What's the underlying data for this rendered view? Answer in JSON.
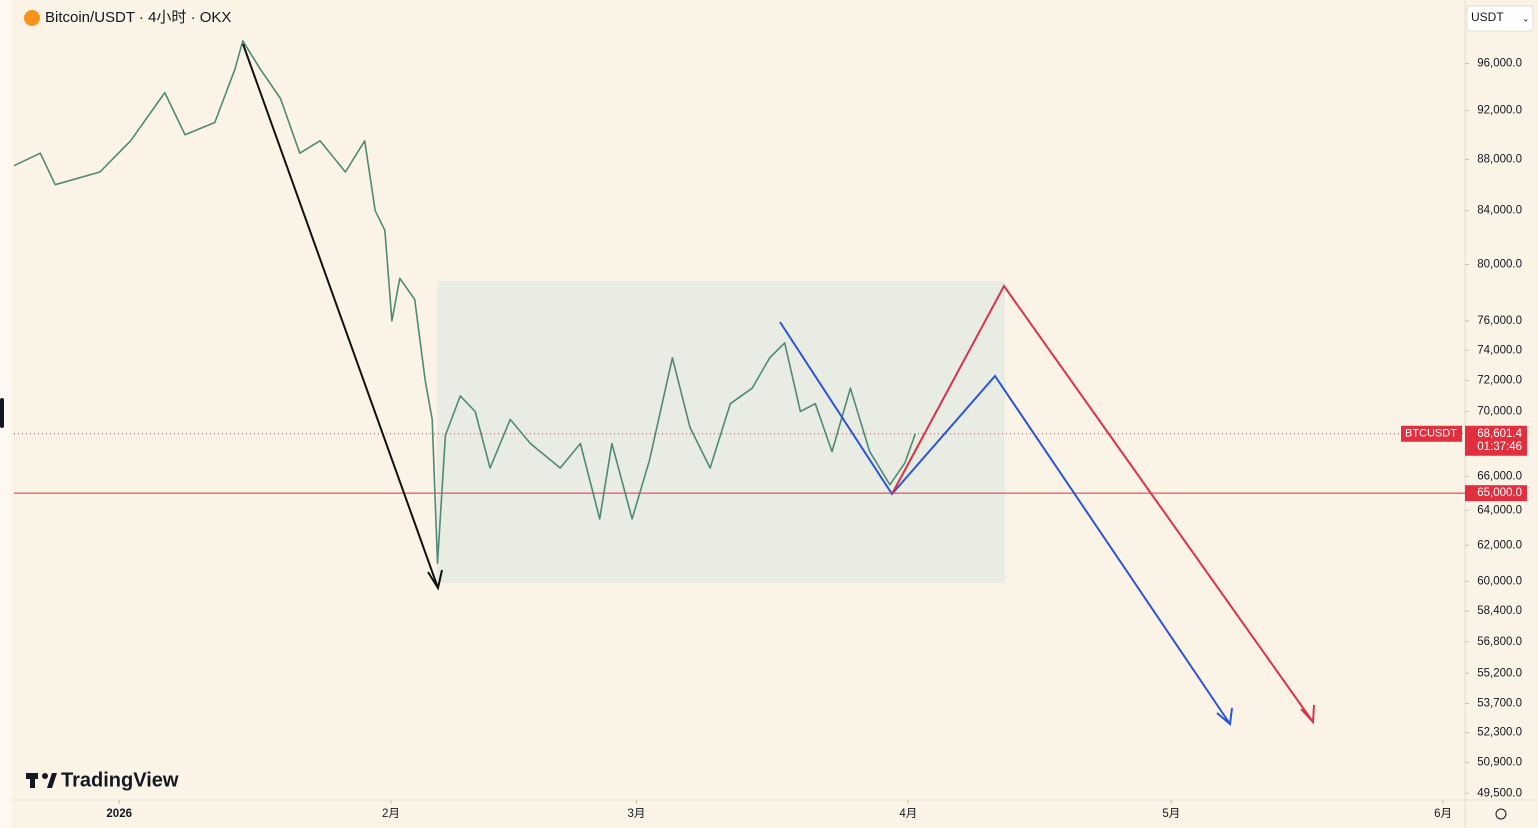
{
  "chart_data": {
    "type": "line",
    "title": "Bitcoin/USDT · 4小时 · OKX",
    "currency": "USDT",
    "watermark": "TradingView",
    "log_scale": true,
    "x": [
      -12.0,
      -9.0,
      -7.3,
      -2.2,
      1.3,
      5.2,
      7.5,
      10.9,
      13.2,
      14.1,
      16.1,
      18.4,
      20.6,
      22.9,
      25.8,
      28.0,
      29.2,
      30.3,
      31.1,
      32.0,
      33.7,
      34.9,
      35.7,
      36.3,
      37.2,
      38.9,
      40.6,
      42.3,
      44.6,
      46.9,
      50.3,
      52.6,
      54.8,
      56.2,
      58.5,
      60.5,
      63.1,
      65.1,
      67.4,
      69.7,
      72.2,
      74.2,
      75.9,
      77.7,
      79.4,
      81.3,
      83.4,
      85.6,
      87.9,
      89.6,
      90.8
    ],
    "series": [
      {
        "name": "BTCUSDT",
        "color": "#4f8a72",
        "values": [
          87500,
          88500,
          86000,
          87000,
          89500,
          93500,
          90000,
          91000,
          95500,
          98000,
          95500,
          93000,
          88500,
          89500,
          87000,
          89500,
          84000,
          82500,
          76000,
          79000,
          77500,
          72000,
          69500,
          61000,
          68500,
          71000,
          70000,
          66500,
          69500,
          68000,
          66500,
          68000,
          63500,
          68000,
          63500,
          67000,
          73500,
          69000,
          66500,
          70500,
          71500,
          73500,
          74500,
          70000,
          70500,
          67500,
          71500,
          67500,
          65500,
          66800,
          68600
        ]
      }
    ],
    "xlim": [
      -12,
      153.5
    ],
    "xticks": [
      {
        "value": 0,
        "label": "2026"
      },
      {
        "value": 31,
        "label": "2月"
      },
      {
        "value": 59,
        "label": "3月"
      },
      {
        "value": 90,
        "label": "4月"
      },
      {
        "value": 120,
        "label": "5月"
      },
      {
        "value": 151,
        "label": "6月"
      }
    ],
    "ylim": [
      49200,
      101700
    ],
    "yticks": [
      {
        "value": 96000,
        "label": "96,000.0"
      },
      {
        "value": 92000,
        "label": "92,000.0"
      },
      {
        "value": 88000,
        "label": "88,000.0"
      },
      {
        "value": 84000,
        "label": "84,000.0"
      },
      {
        "value": 80000,
        "label": "80,000.0"
      },
      {
        "value": 76000,
        "label": "76,000.0"
      },
      {
        "value": 74000,
        "label": "74,000.0"
      },
      {
        "value": 72000,
        "label": "72,000.0"
      },
      {
        "value": 70000,
        "label": "70,000.0"
      },
      {
        "value": 66000,
        "label": "66,000.0"
      },
      {
        "value": 64000,
        "label": "64,000.0"
      },
      {
        "value": 62000,
        "label": "62,000.0"
      },
      {
        "value": 60000,
        "label": "60,000.0"
      },
      {
        "value": 58400,
        "label": "58,400.0"
      },
      {
        "value": 56800,
        "label": "56,800.0"
      },
      {
        "value": 55200,
        "label": "55,200.0"
      },
      {
        "value": 53700,
        "label": "53,700.0"
      },
      {
        "value": 52300,
        "label": "52,300.0"
      },
      {
        "value": 50900,
        "label": "50,900.0"
      },
      {
        "value": 49500,
        "label": "49,500.0"
      }
    ],
    "price_line": {
      "name": "BTCUSDT",
      "value": 68601.4,
      "label": "68,601.4",
      "countdown": "01:37:46",
      "color": "#e0303f"
    },
    "level_line": {
      "value": 65000,
      "label": "65,000.0",
      "color": "#e0303f"
    }
  }
}
